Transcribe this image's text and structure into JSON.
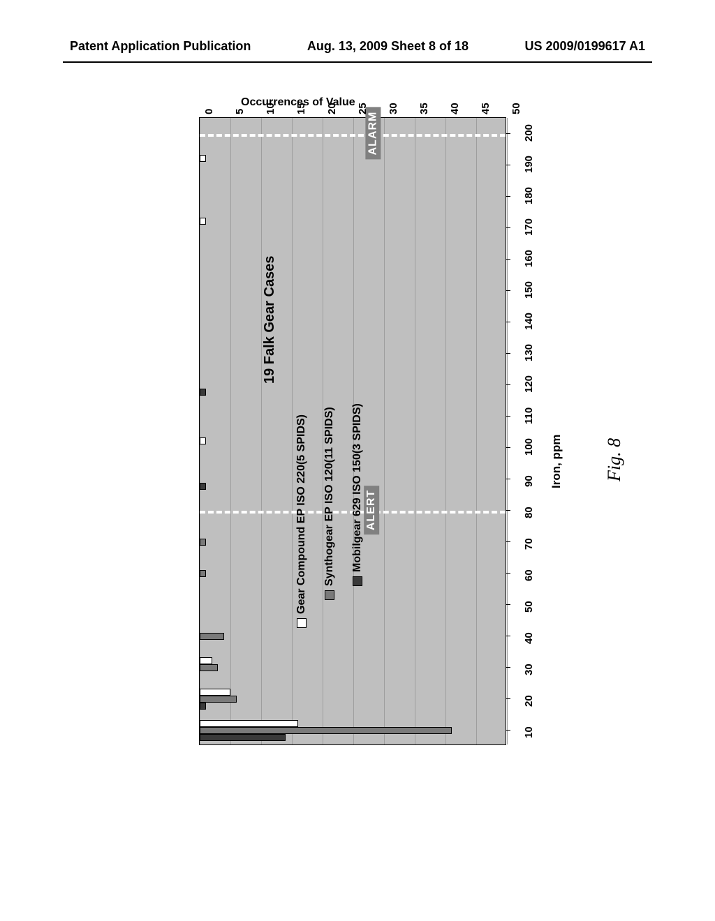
{
  "header": {
    "left": "Patent Application Publication",
    "center": "Aug. 13, 2009  Sheet 8 of 18",
    "right": "US 2009/0199617 A1"
  },
  "figure_caption": "Fig. 8",
  "chart": {
    "type": "bar",
    "title": "19 Falk Gear Cases",
    "x_axis": {
      "label": "Iron, ppm",
      "ticks": [
        10,
        20,
        30,
        40,
        50,
        60,
        70,
        80,
        90,
        100,
        110,
        120,
        130,
        140,
        150,
        160,
        170,
        180,
        190,
        200
      ],
      "range": [
        5,
        205
      ]
    },
    "y_axis": {
      "label": "Occurrences of Value",
      "ticks": [
        0,
        5,
        10,
        15,
        20,
        25,
        30,
        35,
        40,
        45,
        50
      ],
      "range": [
        0,
        50
      ]
    },
    "background_color": "#bfbfbf",
    "grid_color": "#9e9e9e",
    "series": [
      {
        "name": "Gear Compound EP ISO 220(5 SPIDS)",
        "color": "#ffffff",
        "key": "white"
      },
      {
        "name": "Synthogear EP ISO 120(11 SPIDS)",
        "color": "#7a7a7a",
        "key": "gray"
      },
      {
        "name": "Mobilgear 629 ISO 150(3 SPIDS)",
        "color": "#3a3a3a",
        "key": "dark"
      }
    ],
    "thresholds": [
      {
        "label": "ALERT",
        "value": 80
      },
      {
        "label": "ALARM",
        "value": 200
      }
    ],
    "data": [
      {
        "x": 10,
        "white": 16,
        "gray": 41,
        "dark": 14
      },
      {
        "x": 20,
        "white": 5,
        "gray": 6,
        "dark": 1
      },
      {
        "x": 30,
        "white": 2,
        "gray": 3,
        "dark": 0
      },
      {
        "x": 40,
        "white": 0,
        "gray": 4,
        "dark": 0
      },
      {
        "x": 60,
        "white": 0,
        "gray": 1,
        "dark": 0
      },
      {
        "x": 70,
        "white": 0,
        "gray": 1,
        "dark": 0
      },
      {
        "x": 90,
        "white": 0,
        "gray": 0,
        "dark": 1
      },
      {
        "x": 100,
        "white": 1,
        "gray": 0,
        "dark": 0
      },
      {
        "x": 120,
        "white": 0,
        "gray": 0,
        "dark": 1
      },
      {
        "x": 170,
        "white": 1,
        "gray": 0,
        "dark": 0
      },
      {
        "x": 190,
        "white": 1,
        "gray": 0,
        "dark": 0
      }
    ],
    "title_fontsize": 20,
    "label_fontsize": 16,
    "tick_fontsize": 15
  }
}
